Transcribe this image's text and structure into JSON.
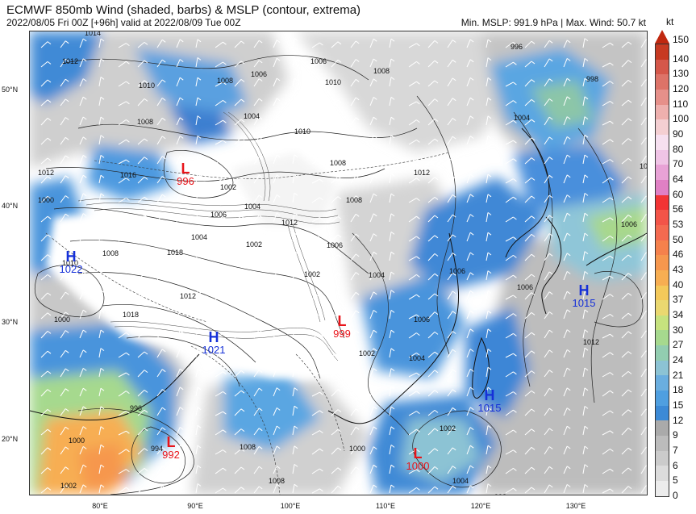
{
  "header": {
    "title": "ECMWF 850mb Wind (shaded, barbs) & MSLP (contour, extrema)",
    "subtitle": "2022/08/05 Fri 00Z [+96h] valid at 2022/08/09 Tue 00Z",
    "stats": "Min. MSLP: 991.9 hPa | Max. Wind: 50.7 kt"
  },
  "colorbar": {
    "unit": "kt",
    "levels": [
      "150",
      "140",
      "130",
      "120",
      "110",
      "100",
      "90",
      "80",
      "70",
      "64",
      "60",
      "56",
      "53",
      "50",
      "46",
      "43",
      "40",
      "37",
      "34",
      "30",
      "27",
      "24",
      "21",
      "18",
      "15",
      "12",
      "9",
      "7",
      "6",
      "5",
      "0"
    ],
    "colors": [
      "#c73a22",
      "#d5574a",
      "#dd7368",
      "#e6908a",
      "#eeb0ae",
      "#f4cfd2",
      "#f6e0f0",
      "#f0c4e6",
      "#e8a2d6",
      "#e080c4",
      "#f23434",
      "#f35448",
      "#f46a50",
      "#f5814c",
      "#f6974e",
      "#f7ae52",
      "#f4c95a",
      "#ead870",
      "#c6e27e",
      "#a6d98e",
      "#92cdb0",
      "#8cc3d4",
      "#6aaedf",
      "#4f9fe0",
      "#3c8ad6",
      "#aaaaaa",
      "#bcbcbc",
      "#cbcbcb",
      "#dcdcdc",
      "#ececec"
    ],
    "tip_color": "#c0280f"
  },
  "axes": {
    "lat": [
      "50°N",
      "40°N",
      "30°N",
      "20°N"
    ],
    "lon": [
      "80°E",
      "90°E",
      "100°E",
      "110°E",
      "120°E",
      "130°E"
    ]
  },
  "pressure_centers": [
    {
      "type": "L",
      "value": "996"
    },
    {
      "type": "H",
      "value": "1022"
    },
    {
      "type": "H",
      "value": "1021"
    },
    {
      "type": "L",
      "value": "999"
    },
    {
      "type": "H",
      "value": "1015"
    },
    {
      "type": "H",
      "value": "1015"
    },
    {
      "type": "L",
      "value": "992"
    },
    {
      "type": "L",
      "value": "1000"
    }
  ],
  "contour_labels": [
    "1012",
    "1008",
    "1010",
    "1006",
    "1004",
    "1010",
    "1008",
    "1006",
    "1012",
    "1016",
    "1014",
    "1010",
    "1004",
    "1000",
    "1002",
    "1006",
    "1008",
    "1004",
    "1018",
    "1012",
    "1004",
    "1000",
    "1012",
    "1018",
    "1008",
    "1006",
    "1002",
    "1012",
    "1006",
    "1004",
    "1000",
    "998",
    "1008",
    "1002",
    "996",
    "994",
    "1004",
    "1008",
    "1006",
    "1012",
    "1008",
    "1002",
    "1006",
    "1004",
    "996",
    "1002",
    "1000",
    "1008",
    "1002",
    "1006",
    "1010",
    "1004",
    "998"
  ],
  "colors": {
    "low": "#e8141a",
    "high": "#1530d8"
  }
}
